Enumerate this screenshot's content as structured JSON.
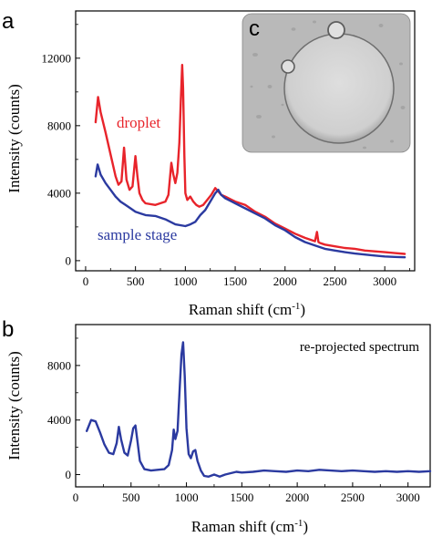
{
  "chart_data": [
    {
      "panel": "a",
      "type": "line",
      "xlabel": "Raman  shift (cm⁻¹)",
      "ylabel": "Intensity (counts)",
      "xlim": [
        -100,
        3300
      ],
      "ylim": [
        -600,
        14800
      ],
      "xticks": [
        0,
        500,
        1000,
        1500,
        2000,
        2500,
        3000
      ],
      "yticks": [
        0,
        4000,
        8000,
        12000
      ],
      "grid": false,
      "annotations": [
        "droplet",
        "sample stage"
      ],
      "inset_label": "c",
      "series": [
        {
          "name": "droplet",
          "color": "#e8242b",
          "x": [
            100,
            125,
            150,
            200,
            250,
            300,
            330,
            360,
            385,
            410,
            440,
            470,
            500,
            520,
            540,
            570,
            600,
            700,
            800,
            830,
            860,
            880,
            900,
            920,
            940,
            955,
            968,
            978,
            990,
            1000,
            1020,
            1050,
            1080,
            1110,
            1140,
            1180,
            1220,
            1260,
            1300,
            1330,
            1360,
            1400,
            1500,
            1600,
            1700,
            1800,
            1900,
            2000,
            2100,
            2200,
            2300,
            2320,
            2335,
            2350,
            2400,
            2500,
            2600,
            2700,
            2800,
            2900,
            3000,
            3100,
            3200
          ],
          "y": [
            8200,
            9700,
            8800,
            7600,
            6300,
            5000,
            4500,
            4700,
            6700,
            4800,
            4200,
            4400,
            6200,
            5000,
            4000,
            3600,
            3400,
            3300,
            3500,
            3900,
            5800,
            5100,
            4600,
            5200,
            7000,
            9500,
            11600,
            10200,
            6200,
            4000,
            3600,
            3800,
            3500,
            3300,
            3200,
            3300,
            3600,
            3900,
            4300,
            4100,
            3900,
            3800,
            3500,
            3300,
            2900,
            2600,
            2200,
            1900,
            1600,
            1350,
            1150,
            1700,
            1100,
            1050,
            950,
            850,
            750,
            700,
            600,
            550,
            500,
            450,
            400
          ]
        },
        {
          "name": "sample stage",
          "color": "#2b3aa0",
          "x": [
            100,
            120,
            150,
            200,
            250,
            300,
            350,
            400,
            450,
            500,
            550,
            600,
            700,
            800,
            900,
            1000,
            1050,
            1100,
            1150,
            1200,
            1250,
            1300,
            1330,
            1360,
            1400,
            1500,
            1600,
            1700,
            1800,
            1900,
            2000,
            2100,
            2200,
            2300,
            2400,
            2500,
            2600,
            2700,
            2800,
            2900,
            3000,
            3100,
            3200
          ],
          "y": [
            5000,
            5700,
            5100,
            4600,
            4200,
            3800,
            3500,
            3300,
            3100,
            2900,
            2800,
            2700,
            2650,
            2450,
            2150,
            2050,
            2150,
            2300,
            2700,
            3000,
            3500,
            4000,
            4200,
            3900,
            3700,
            3400,
            3100,
            2800,
            2500,
            2100,
            1800,
            1400,
            1100,
            900,
            700,
            600,
            500,
            420,
            360,
            300,
            250,
            220,
            200
          ]
        }
      ]
    },
    {
      "panel": "b",
      "type": "line",
      "xlabel": "Raman  shift (cm⁻¹)",
      "ylabel": "Intensity (counts)",
      "xlim": [
        0,
        3200
      ],
      "ylim": [
        -900,
        11000
      ],
      "xticks": [
        0,
        500,
        1000,
        1500,
        2000,
        2500,
        3000
      ],
      "yticks": [
        0,
        4000,
        8000
      ],
      "grid": false,
      "annotations": [
        "re-projected spectrum"
      ],
      "series": [
        {
          "color": "#2b3aa0",
          "x": [
            100,
            140,
            180,
            220,
            260,
            300,
            340,
            370,
            390,
            410,
            440,
            470,
            500,
            520,
            540,
            560,
            580,
            620,
            680,
            740,
            800,
            840,
            870,
            885,
            900,
            920,
            940,
            955,
            970,
            985,
            1000,
            1020,
            1040,
            1060,
            1080,
            1100,
            1130,
            1160,
            1200,
            1250,
            1300,
            1350,
            1400,
            1450,
            1500,
            1600,
            1700,
            1800,
            1900,
            2000,
            2100,
            2200,
            2300,
            2400,
            2500,
            2600,
            2700,
            2800,
            2900,
            3000,
            3100,
            3200
          ],
          "y": [
            3200,
            4000,
            3900,
            3100,
            2200,
            1600,
            1500,
            2300,
            3500,
            2600,
            1600,
            1400,
            2500,
            3400,
            3600,
            2300,
            1000,
            400,
            300,
            350,
            400,
            700,
            1800,
            3300,
            2600,
            3200,
            6500,
            8800,
            9700,
            7200,
            3400,
            1500,
            1200,
            1700,
            1800,
            1000,
            300,
            -100,
            -150,
            0,
            -150,
            0,
            100,
            200,
            150,
            200,
            300,
            250,
            200,
            300,
            250,
            350,
            300,
            250,
            300,
            250,
            200,
            250,
            200,
            250,
            200,
            250
          ]
        }
      ]
    }
  ],
  "labels": {
    "panel_a": "a",
    "panel_b": "b",
    "inset": "c",
    "droplet": "droplet",
    "sample_stage": "sample stage",
    "reprojected": "re-projected spectrum",
    "ylabel": "Intensity (counts)",
    "xlabel_prefix": "Raman  shift (cm",
    "xlabel_sup": "-1",
    "xlabel_suffix": ")"
  },
  "colors": {
    "droplet": "#e8242b",
    "sample_stage": "#2b3aa0",
    "inset_bg": "#b9b9b9",
    "inset_droplet": "#d4d4d4"
  }
}
